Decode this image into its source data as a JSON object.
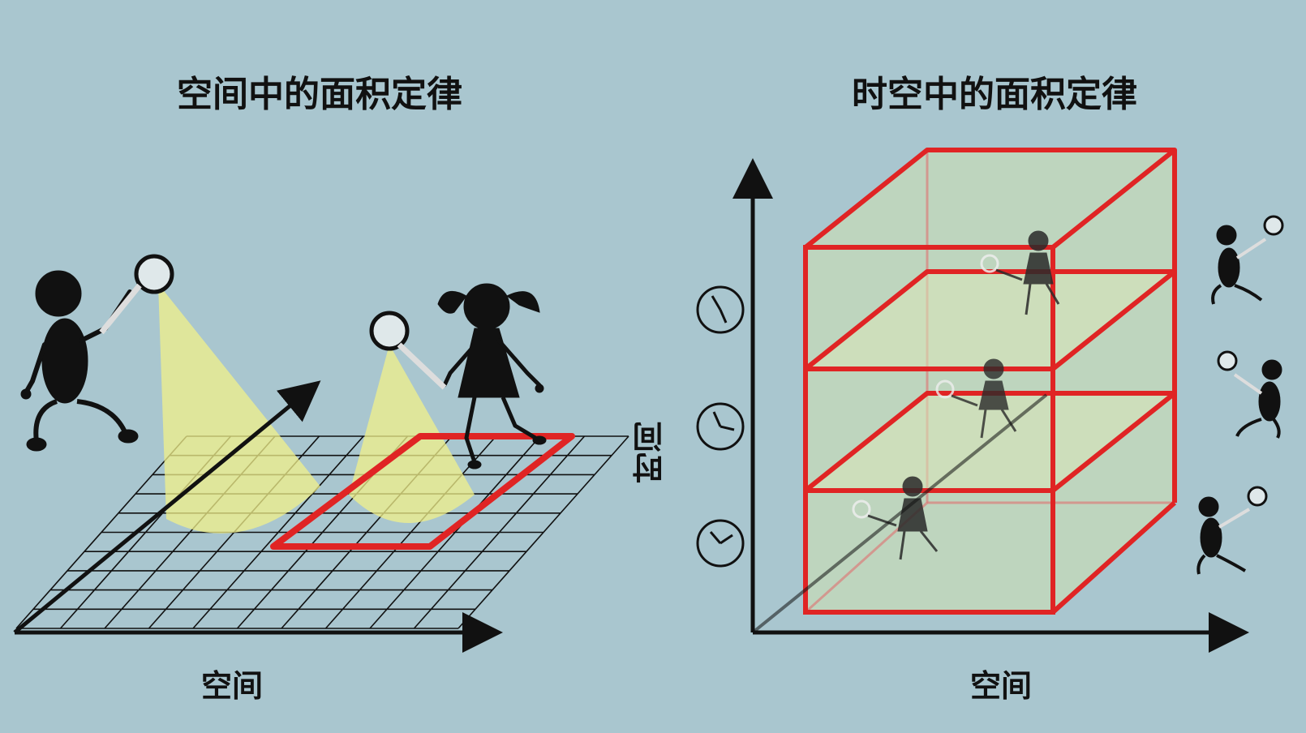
{
  "left_panel": {
    "title": "空间中的面积定律",
    "x_axis_label": "空间"
  },
  "right_panel": {
    "title": "时空中的面积定律",
    "x_axis_label": "空间",
    "y_axis_label": "时间"
  },
  "colors": {
    "background": "#a9c6cf",
    "highlight_red": "#e02424",
    "light_cone_yellow": "#f2f08a",
    "box_fill": "#c8dcb6",
    "ink": "#111111"
  },
  "icons": {
    "clocks": [
      "clock-icon",
      "clock-icon",
      "clock-icon"
    ],
    "figures": [
      "boy-with-magnifier-icon",
      "girl-with-magnifier-icon"
    ]
  }
}
